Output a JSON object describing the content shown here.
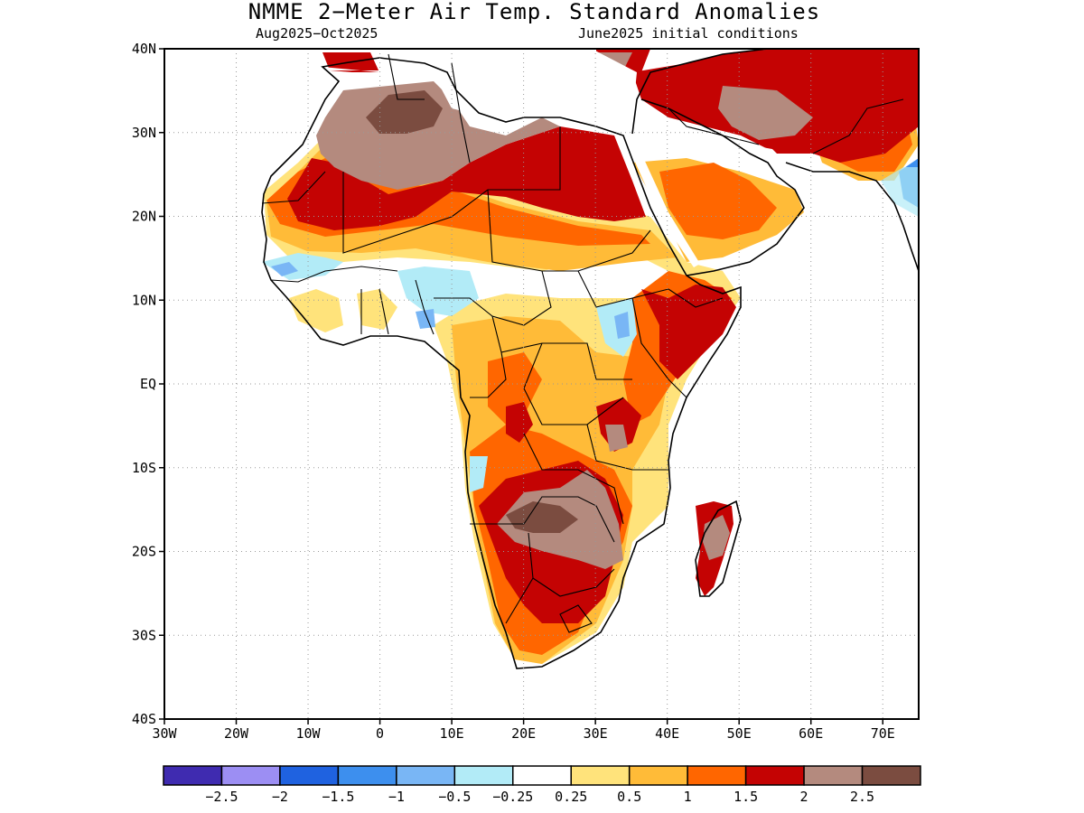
{
  "title": "NMME 2−Meter Air Temp. Standard Anomalies",
  "subtitle_left": "Aug2025−Oct2025",
  "subtitle_right": "June2025 initial conditions",
  "lat_labels": [
    "40N",
    "30N",
    "20N",
    "10N",
    "EQ",
    "10S",
    "20S",
    "30S",
    "40S"
  ],
  "lat_values": [
    40,
    30,
    20,
    10,
    0,
    -10,
    -20,
    -30,
    -40
  ],
  "lon_labels": [
    "30W",
    "20W",
    "10W",
    "0",
    "10E",
    "20E",
    "30E",
    "40E",
    "50E",
    "60E",
    "70E"
  ],
  "lon_values": [
    -30,
    -20,
    -10,
    0,
    10,
    20,
    30,
    40,
    50,
    60,
    70
  ],
  "extent": {
    "lon_min": -30,
    "lon_max": 75,
    "lat_min": -40,
    "lat_max": 40
  },
  "colorbar": {
    "colors": [
      "#3f2bb0",
      "#9c8ef3",
      "#1f62e0",
      "#3d8fee",
      "#79b6f5",
      "#b2ebf7",
      "#ffffff",
      "#ffe37b",
      "#ffbb38",
      "#ff6600",
      "#c40303",
      "#b48a7e",
      "#7b4c40"
    ],
    "labels": [
      "−2.5",
      "−2",
      "−1.5",
      "−1",
      "−0.5",
      "−0.25",
      "0.25",
      "0.5",
      "1",
      "1.5",
      "2",
      "2.5"
    ]
  },
  "anomaly_regions": [
    {
      "level": 2.5,
      "color": "#7b4c40",
      "name": "algeria core",
      "pts": [
        [
          -4,
          33
        ],
        [
          4,
          33
        ],
        [
          8,
          31
        ],
        [
          6,
          28
        ],
        [
          1,
          27
        ],
        [
          -3,
          29
        ]
      ]
    },
    {
      "level": 2.5,
      "color": "#7b4c40",
      "name": "zimbabwe core",
      "pts": [
        [
          17,
          -17
        ],
        [
          22,
          -15.5
        ],
        [
          26,
          -16
        ],
        [
          27,
          -18
        ],
        [
          23,
          -19
        ],
        [
          18,
          -19
        ]
      ]
    },
    {
      "level": 2,
      "color": "#b48a7e",
      "name": "sahara anomaly",
      "pts": [
        [
          -11,
          32
        ],
        [
          -6,
          35
        ],
        [
          0,
          37
        ],
        [
          6,
          37
        ],
        [
          10,
          36
        ],
        [
          11,
          33
        ],
        [
          12,
          29
        ],
        [
          8,
          27
        ],
        [
          3,
          26
        ],
        [
          -2,
          25
        ],
        [
          -7,
          23
        ],
        [
          -11,
          25
        ],
        [
          -13,
          28
        ]
      ]
    },
    {
      "level": 2,
      "color": "#b48a7e",
      "name": "southern africa",
      "pts": [
        [
          15,
          -14
        ],
        [
          21,
          -12
        ],
        [
          27,
          -11
        ],
        [
          31,
          -12
        ],
        [
          33,
          -15
        ],
        [
          34,
          -20
        ],
        [
          33,
          -24
        ],
        [
          27,
          -22
        ],
        [
          21,
          -21
        ],
        [
          16,
          -19
        ]
      ]
    },
    {
      "level": 2,
      "color": "#b48a7e",
      "name": "iran",
      "pts": [
        [
          36,
          37
        ],
        [
          44,
          40
        ],
        [
          52,
          39
        ],
        [
          58,
          38
        ],
        [
          57,
          34
        ],
        [
          52,
          30
        ],
        [
          47,
          30
        ],
        [
          42,
          33
        ],
        [
          38,
          35
        ]
      ]
    },
    {
      "level": 2,
      "color": "#b48a7e",
      "name": "madagascar",
      "pts": [
        [
          46,
          -18
        ],
        [
          49,
          -15
        ],
        [
          50,
          -17
        ],
        [
          48,
          -22
        ],
        [
          46,
          -22
        ]
      ]
    }
  ]
}
